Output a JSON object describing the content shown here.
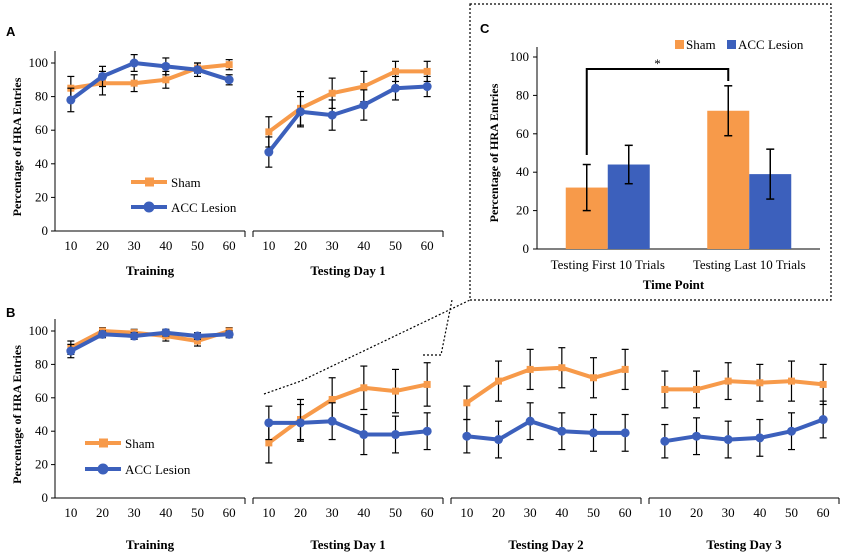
{
  "colors": {
    "sham": "#F79A4A",
    "acc": "#3C60BC",
    "error": "#000000"
  },
  "panels": {
    "a": "A",
    "b": "B",
    "c": "C"
  },
  "legend": {
    "sham": "Sham",
    "acc": "ACC Lesion"
  },
  "chart_data": [
    {
      "panel": "A",
      "type": "line",
      "ylabel": "Percentage of HRA Entries",
      "ylim": [
        0,
        100
      ],
      "yticks": [
        0,
        20,
        40,
        60,
        80,
        100
      ],
      "legend_position": "bottom-left",
      "groups": [
        {
          "name": "Training",
          "x": [
            10,
            20,
            30,
            40,
            50,
            60
          ],
          "series": [
            {
              "name": "Sham",
              "values": [
                85,
                88,
                88,
                90,
                97,
                99
              ],
              "errors": [
                7,
                7,
                5,
                5,
                3,
                3
              ]
            },
            {
              "name": "ACC Lesion",
              "values": [
                78,
                92,
                100,
                98,
                96,
                90
              ],
              "errors": [
                7,
                6,
                5,
                5,
                4,
                3
              ]
            }
          ]
        },
        {
          "name": "Testing Day 1",
          "x": [
            10,
            20,
            30,
            40,
            50,
            60
          ],
          "series": [
            {
              "name": "Sham",
              "values": [
                59,
                73,
                82,
                86,
                95,
                95
              ],
              "errors": [
                9,
                10,
                9,
                9,
                6,
                6
              ]
            },
            {
              "name": "ACC Lesion",
              "values": [
                47,
                71,
                69,
                75,
                85,
                86
              ],
              "errors": [
                9,
                9,
                9,
                9,
                7,
                6
              ]
            }
          ]
        }
      ]
    },
    {
      "panel": "B",
      "type": "line",
      "ylabel": "Percentage of HRA Entries",
      "ylim": [
        0,
        100
      ],
      "yticks": [
        0,
        20,
        40,
        60,
        80,
        100
      ],
      "legend_position": "bottom-left",
      "groups": [
        {
          "name": "Training",
          "x": [
            10,
            20,
            30,
            40,
            50,
            60
          ],
          "series": [
            {
              "name": "Sham",
              "values": [
                90,
                100,
                99,
                97,
                94,
                100
              ],
              "errors": [
                4,
                2,
                2,
                3,
                3,
                2
              ]
            },
            {
              "name": "ACC Lesion",
              "values": [
                88,
                98,
                97,
                99,
                97,
                98
              ],
              "errors": [
                4,
                2,
                2,
                2,
                2,
                2
              ]
            }
          ]
        },
        {
          "name": "Testing Day 1",
          "x": [
            10,
            20,
            30,
            40,
            50,
            60
          ],
          "series": [
            {
              "name": "Sham",
              "values": [
                33,
                47,
                59,
                66,
                64,
                68
              ],
              "errors": [
                12,
                12,
                13,
                13,
                13,
                13
              ]
            },
            {
              "name": "ACC Lesion",
              "values": [
                45,
                45,
                46,
                38,
                38,
                40
              ],
              "errors": [
                10,
                11,
                11,
                12,
                11,
                11
              ]
            }
          ]
        },
        {
          "name": "Testing Day 2",
          "x": [
            10,
            20,
            30,
            40,
            50,
            60
          ],
          "series": [
            {
              "name": "Sham",
              "values": [
                57,
                70,
                77,
                78,
                72,
                77
              ],
              "errors": [
                10,
                12,
                12,
                12,
                12,
                12
              ]
            },
            {
              "name": "ACC Lesion",
              "values": [
                37,
                35,
                46,
                40,
                39,
                39
              ],
              "errors": [
                10,
                11,
                11,
                11,
                11,
                11
              ]
            }
          ]
        },
        {
          "name": "Testing Day 3",
          "x": [
            10,
            20,
            30,
            40,
            50,
            60
          ],
          "series": [
            {
              "name": "Sham",
              "values": [
                65,
                65,
                70,
                69,
                70,
                68
              ],
              "errors": [
                11,
                11,
                11,
                11,
                12,
                12
              ]
            },
            {
              "name": "ACC Lesion",
              "values": [
                34,
                37,
                35,
                36,
                40,
                47
              ],
              "errors": [
                10,
                11,
                11,
                11,
                11,
                11
              ]
            }
          ]
        }
      ]
    },
    {
      "panel": "C",
      "type": "bar",
      "ylabel": "Percentage of HRA Entries",
      "xlabel": "Time Point",
      "ylim": [
        0,
        100
      ],
      "yticks": [
        0,
        20,
        40,
        60,
        80,
        100
      ],
      "categories": [
        "Testing First 10 Trials",
        "Testing Last 10 Trials"
      ],
      "series": [
        {
          "name": "Sham",
          "values": [
            32,
            72
          ],
          "errors": [
            12,
            13
          ]
        },
        {
          "name": "ACC Lesion",
          "values": [
            44,
            39
          ],
          "errors": [
            10,
            13
          ]
        }
      ],
      "legend_position": "top",
      "annotation": "*"
    }
  ]
}
